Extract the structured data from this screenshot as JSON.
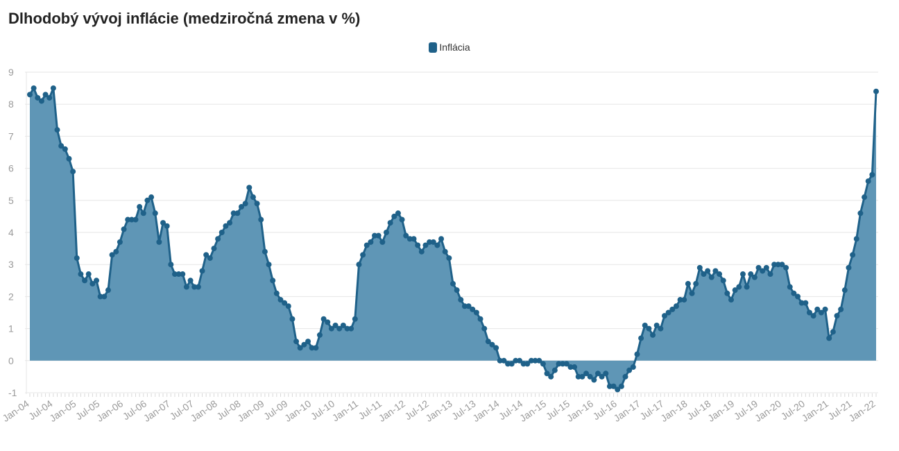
{
  "title": "Dlhodobý vývoj inflácie (medziročná zmena v %)",
  "colors": {
    "line": "#1f6189",
    "area": "#5f96b6",
    "grid": "#e6e6e6",
    "axis_text": "#9a9a9a"
  },
  "chart_data": {
    "type": "area",
    "title": "Dlhodobý vývoj inflácie (medziročná zmena v %)",
    "legend": [
      "Inflácia"
    ],
    "legend_position": "top-center",
    "grid": true,
    "ylim": [
      -1,
      9
    ],
    "yticks": [
      -1,
      0,
      1,
      2,
      3,
      4,
      5,
      6,
      7,
      8,
      9
    ],
    "x_start": "2004-01",
    "x_end": "2022-01",
    "x_tick_labels": [
      "Jan-04",
      "Jul-04",
      "Jan-05",
      "Jul-05",
      "Jan-06",
      "Jul-06",
      "Jan-07",
      "Jul-07",
      "Jan-08",
      "Jul-08",
      "Jan-09",
      "Jul-09",
      "Jan-10",
      "Jul-10",
      "Jan-11",
      "Jul-11",
      "Jan-12",
      "Jul-12",
      "Jan-13",
      "Jul-13",
      "Jan-14",
      "Jul-14",
      "Jan-15",
      "Jul-15",
      "Jan-16",
      "Jul-16",
      "Jan-17",
      "Jul-17",
      "Jan-18",
      "Jul-18",
      "Jan-19",
      "Jul-19",
      "Jan-20",
      "Jul-20",
      "Jan-21",
      "Jul-21",
      "Jan-22"
    ],
    "series": [
      {
        "name": "Inflácia",
        "values": [
          8.3,
          8.5,
          8.2,
          8.1,
          8.3,
          8.2,
          8.5,
          7.2,
          6.7,
          6.6,
          6.3,
          5.9,
          3.2,
          2.7,
          2.5,
          2.7,
          2.4,
          2.5,
          2.0,
          2.0,
          2.2,
          3.3,
          3.4,
          3.7,
          4.1,
          4.4,
          4.4,
          4.4,
          4.8,
          4.6,
          5.0,
          5.1,
          4.6,
          3.7,
          4.3,
          4.2,
          3.0,
          2.7,
          2.7,
          2.7,
          2.3,
          2.5,
          2.3,
          2.3,
          2.8,
          3.3,
          3.2,
          3.5,
          3.8,
          4.0,
          4.2,
          4.3,
          4.6,
          4.6,
          4.8,
          4.9,
          5.4,
          5.1,
          4.9,
          4.4,
          3.4,
          3.0,
          2.5,
          2.1,
          1.9,
          1.8,
          1.7,
          1.3,
          0.6,
          0.4,
          0.5,
          0.6,
          0.4,
          0.4,
          0.8,
          1.3,
          1.2,
          1.0,
          1.1,
          1.0,
          1.1,
          1.0,
          1.0,
          1.3,
          3.0,
          3.3,
          3.6,
          3.7,
          3.9,
          3.9,
          3.7,
          4.0,
          4.3,
          4.5,
          4.6,
          4.4,
          3.9,
          3.8,
          3.8,
          3.6,
          3.4,
          3.6,
          3.7,
          3.7,
          3.6,
          3.8,
          3.4,
          3.2,
          2.4,
          2.2,
          1.9,
          1.7,
          1.7,
          1.6,
          1.5,
          1.3,
          1.0,
          0.6,
          0.5,
          0.4,
          0.0,
          0.0,
          -0.1,
          -0.1,
          0.0,
          0.0,
          -0.1,
          -0.1,
          0.0,
          0.0,
          0.0,
          -0.1,
          -0.4,
          -0.5,
          -0.3,
          -0.1,
          -0.1,
          -0.1,
          -0.2,
          -0.2,
          -0.5,
          -0.5,
          -0.4,
          -0.5,
          -0.6,
          -0.4,
          -0.5,
          -0.4,
          -0.8,
          -0.8,
          -0.9,
          -0.8,
          -0.5,
          -0.3,
          -0.2,
          0.2,
          0.7,
          1.1,
          1.0,
          0.8,
          1.1,
          1.0,
          1.4,
          1.5,
          1.6,
          1.7,
          1.9,
          1.9,
          2.4,
          2.1,
          2.4,
          2.9,
          2.7,
          2.8,
          2.6,
          2.8,
          2.7,
          2.5,
          2.1,
          1.9,
          2.2,
          2.3,
          2.7,
          2.3,
          2.7,
          2.6,
          2.9,
          2.8,
          2.9,
          2.7,
          3.0,
          3.0,
          3.0,
          2.9,
          2.3,
          2.1,
          2.0,
          1.8,
          1.8,
          1.5,
          1.4,
          1.6,
          1.5,
          1.6,
          0.7,
          0.9,
          1.4,
          1.6,
          2.2,
          2.9,
          3.3,
          3.8,
          4.6,
          5.1,
          5.6,
          5.8,
          8.4
        ]
      }
    ]
  }
}
